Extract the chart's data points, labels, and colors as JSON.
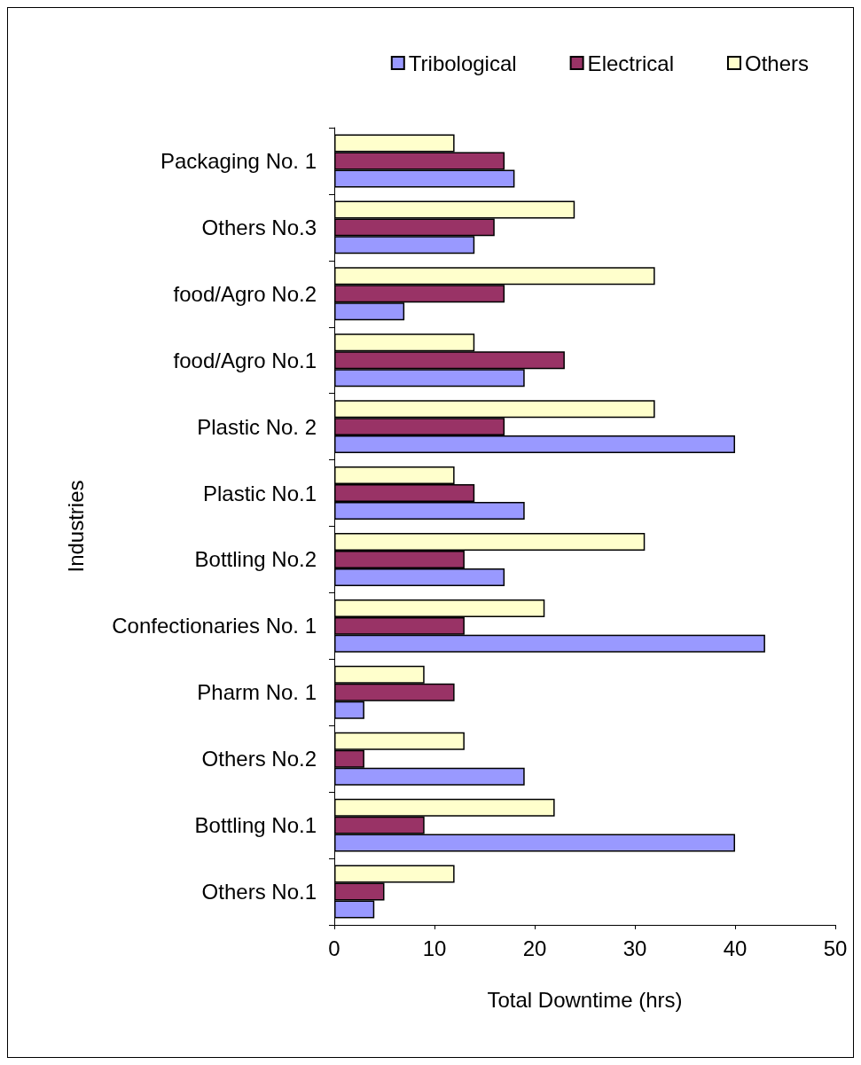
{
  "chart_data": {
    "type": "bar",
    "orientation": "horizontal",
    "xlabel": "Total Downtime (hrs)",
    "ylabel": "Industries",
    "categories": [
      "Packaging No. 1",
      "Others No.3",
      "food/Agro No.2",
      "food/Agro No.1",
      "Plastic No. 2",
      "Plastic No.1",
      "Bottling No.2",
      "Confectionaries No. 1",
      "Pharm No. 1",
      "Others No.2",
      "Bottling No.1",
      "Others No.1"
    ],
    "series": [
      {
        "name": "Tribological",
        "color": "#9999ff",
        "values": [
          18,
          14,
          7,
          19,
          40,
          19,
          17,
          43,
          3,
          19,
          40,
          4
        ]
      },
      {
        "name": "Electrical",
        "color": "#993366",
        "values": [
          17,
          16,
          17,
          23,
          17,
          14,
          13,
          13,
          12,
          3,
          9,
          5
        ]
      },
      {
        "name": "Others",
        "color": "#ffffcc",
        "values": [
          12,
          24,
          32,
          14,
          32,
          12,
          31,
          21,
          9,
          13,
          22,
          12
        ]
      }
    ],
    "xlim": [
      0,
      50
    ],
    "xticks": [
      0,
      10,
      20,
      30,
      40,
      50
    ],
    "grid": false,
    "legend": "top right"
  }
}
